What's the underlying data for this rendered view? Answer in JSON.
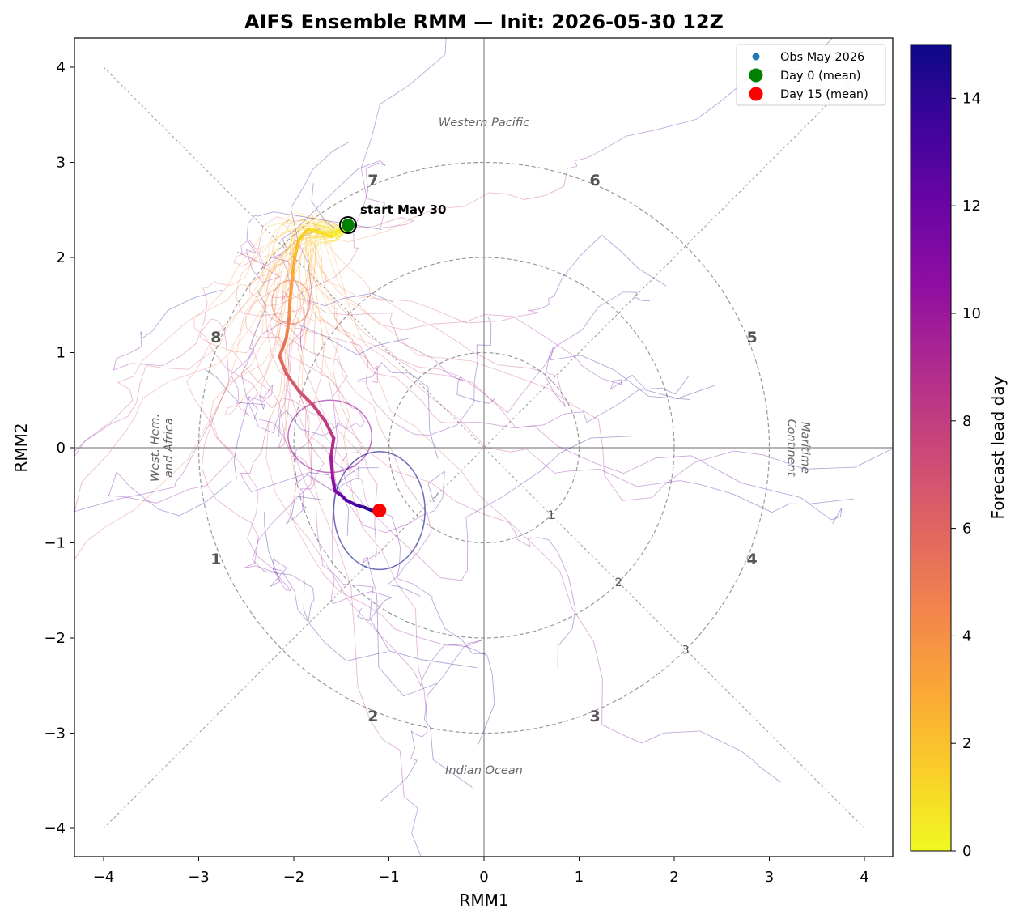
{
  "chart_data": {
    "type": "line",
    "title": "AIFS Ensemble RMM  —  Init: 2026-05-30 12Z",
    "xlabel": "RMM1",
    "ylabel": "RMM2",
    "xlim": [
      -4.3,
      4.3
    ],
    "ylim": [
      -4.3,
      4.3
    ],
    "xticks": [
      "−4",
      "−3",
      "−2",
      "−1",
      "0",
      "1",
      "2",
      "3",
      "4"
    ],
    "yticks": [
      "−4",
      "−3",
      "−2",
      "−1",
      "0",
      "1",
      "2",
      "3",
      "4"
    ],
    "grid": false,
    "phases": [
      "1",
      "2",
      "3",
      "4",
      "5",
      "6",
      "7",
      "8"
    ],
    "regions": {
      "top": "Western Pacific",
      "bottom": "Indian Ocean",
      "left_line1": "West. Hem.",
      "left_line2": "and Africa",
      "right_line1": "Maritime",
      "right_line2": "Continent"
    },
    "amplitude_rings": [
      "1",
      "2",
      "3"
    ],
    "legend": {
      "placement": "top-right",
      "entries": [
        {
          "label": "Obs May 2026",
          "color": "#1f77b4"
        },
        {
          "label": "Day 0 (mean)",
          "color": "#008000"
        },
        {
          "label": "Day 15 (mean)",
          "color": "#ff0000"
        }
      ]
    },
    "annotation": "start May 30",
    "colorbar": {
      "label": "Forecast lead day",
      "range": [
        0,
        15
      ],
      "ticks": [
        "0",
        "2",
        "4",
        "6",
        "8",
        "10",
        "12",
        "14"
      ],
      "colormap": "plasma_r"
    },
    "ensemble_mean": {
      "x": [
        -1.43,
        -1.6,
        -1.85,
        -1.95,
        -1.99,
        -2.02,
        -2.04,
        -2.05,
        -2.08,
        -2.15,
        -2.08,
        -1.95,
        -1.8,
        -1.67,
        -1.58,
        -1.61,
        -1.59,
        -1.57,
        -1.5,
        -1.45,
        -1.35,
        -1.25,
        -1.18,
        -1.1
      ],
      "y": [
        2.34,
        2.22,
        2.3,
        2.18,
        2.0,
        1.75,
        1.55,
        1.35,
        1.15,
        0.96,
        0.78,
        0.6,
        0.45,
        0.28,
        0.1,
        -0.1,
        -0.32,
        -0.45,
        -0.5,
        -0.55,
        -0.6,
        -0.63,
        -0.66,
        -0.66
      ],
      "lead_day": [
        0,
        0.6,
        1.2,
        1.8,
        2.4,
        3.0,
        3.6,
        4.3,
        5.0,
        5.6,
        6.2,
        6.8,
        7.4,
        8.0,
        8.6,
        9.4,
        10.2,
        11.0,
        11.8,
        12.5,
        13.2,
        13.9,
        14.5,
        15
      ]
    },
    "spread_ellipses": [
      {
        "lead_day": 5,
        "cx": -2.03,
        "cy": 1.53,
        "rx": 0.2,
        "ry": 0.23
      },
      {
        "lead_day": 10,
        "cx": -1.62,
        "cy": 0.12,
        "rx": 0.44,
        "ry": 0.38
      },
      {
        "lead_day": 15,
        "cx": -1.1,
        "cy": -0.66,
        "rx": 0.48,
        "ry": 0.62
      }
    ],
    "day0_mean": {
      "x": -1.43,
      "y": 2.34
    },
    "day15_mean": {
      "x": -1.1,
      "y": -0.66
    },
    "ensemble_members": 50
  }
}
